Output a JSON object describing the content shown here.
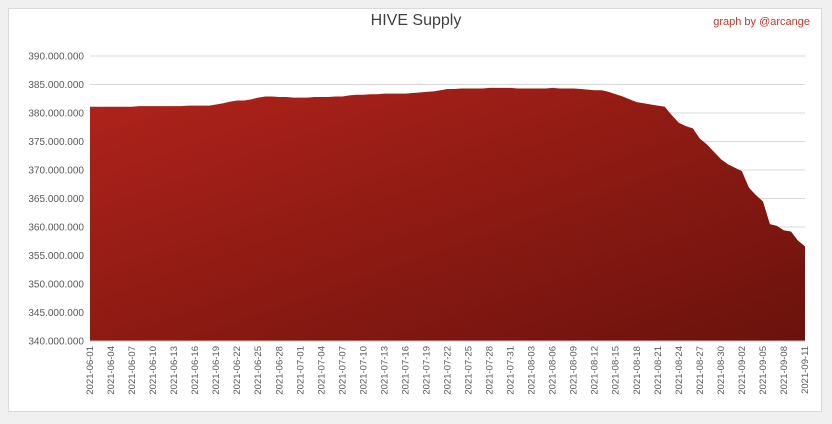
{
  "chart_data": {
    "type": "area",
    "title": "HIVE Supply",
    "credit": "graph by @arcange",
    "xlabel": "",
    "ylabel": "",
    "ylim": [
      340000000,
      390000000
    ],
    "yticks": [
      340000000,
      345000000,
      350000000,
      355000000,
      360000000,
      365000000,
      370000000,
      375000000,
      380000000,
      385000000,
      390000000
    ],
    "ytick_labels": [
      "340.000.000",
      "345.000.000",
      "350.000.000",
      "355.000.000",
      "360.000.000",
      "365.000.000",
      "370.000.000",
      "375.000.000",
      "380.000.000",
      "385.000.000",
      "390.000.000"
    ],
    "xtick_labels": [
      "2021-06-01",
      "2021-06-04",
      "2021-06-07",
      "2021-06-10",
      "2021-06-13",
      "2021-06-16",
      "2021-06-19",
      "2021-06-22",
      "2021-06-25",
      "2021-06-28",
      "2021-07-01",
      "2021-07-04",
      "2021-07-07",
      "2021-07-10",
      "2021-07-13",
      "2021-07-16",
      "2021-07-19",
      "2021-07-22",
      "2021-07-25",
      "2021-07-28",
      "2021-07-31",
      "2021-08-03",
      "2021-08-06",
      "2021-08-09",
      "2021-08-12",
      "2021-08-15",
      "2021-08-18",
      "2021-08-21",
      "2021-08-24",
      "2021-08-27",
      "2021-08-30",
      "2021-09-02",
      "2021-09-05",
      "2021-09-08",
      "2021-09-11"
    ],
    "x": [
      "2021-06-01",
      "2021-06-02",
      "2021-06-03",
      "2021-06-04",
      "2021-06-05",
      "2021-06-06",
      "2021-06-07",
      "2021-06-08",
      "2021-06-09",
      "2021-06-10",
      "2021-06-11",
      "2021-06-12",
      "2021-06-13",
      "2021-06-14",
      "2021-06-15",
      "2021-06-16",
      "2021-06-17",
      "2021-06-18",
      "2021-06-19",
      "2021-06-20",
      "2021-06-21",
      "2021-06-22",
      "2021-06-23",
      "2021-06-24",
      "2021-06-25",
      "2021-06-26",
      "2021-06-27",
      "2021-06-28",
      "2021-06-29",
      "2021-06-30",
      "2021-07-01",
      "2021-07-02",
      "2021-07-03",
      "2021-07-04",
      "2021-07-05",
      "2021-07-06",
      "2021-07-07",
      "2021-07-08",
      "2021-07-09",
      "2021-07-10",
      "2021-07-11",
      "2021-07-12",
      "2021-07-13",
      "2021-07-14",
      "2021-07-15",
      "2021-07-16",
      "2021-07-17",
      "2021-07-18",
      "2021-07-19",
      "2021-07-20",
      "2021-07-21",
      "2021-07-22",
      "2021-07-23",
      "2021-07-24",
      "2021-07-25",
      "2021-07-26",
      "2021-07-27",
      "2021-07-28",
      "2021-07-29",
      "2021-07-30",
      "2021-07-31",
      "2021-08-01",
      "2021-08-02",
      "2021-08-03",
      "2021-08-04",
      "2021-08-05",
      "2021-08-06",
      "2021-08-07",
      "2021-08-08",
      "2021-08-09",
      "2021-08-10",
      "2021-08-11",
      "2021-08-12",
      "2021-08-13",
      "2021-08-14",
      "2021-08-15",
      "2021-08-16",
      "2021-08-17",
      "2021-08-18",
      "2021-08-19",
      "2021-08-20",
      "2021-08-21",
      "2021-08-22",
      "2021-08-23",
      "2021-08-24",
      "2021-08-25",
      "2021-08-26",
      "2021-08-27",
      "2021-08-28",
      "2021-08-29",
      "2021-08-30",
      "2021-08-31",
      "2021-09-01",
      "2021-09-02",
      "2021-09-03",
      "2021-09-04",
      "2021-09-05",
      "2021-09-06",
      "2021-09-07",
      "2021-09-08",
      "2021-09-09",
      "2021-09-10",
      "2021-09-11"
    ],
    "series": [
      {
        "values": [
          381100000,
          381100000,
          381100000,
          381100000,
          381100000,
          381100000,
          381100000,
          381200000,
          381200000,
          381200000,
          381200000,
          381200000,
          381200000,
          381200000,
          381300000,
          381300000,
          381300000,
          381300000,
          381500000,
          381700000,
          382000000,
          382200000,
          382200000,
          382400000,
          382700000,
          382900000,
          382900000,
          382800000,
          382800000,
          382700000,
          382700000,
          382700000,
          382800000,
          382800000,
          382800000,
          382900000,
          382900000,
          383100000,
          383200000,
          383200000,
          383300000,
          383300000,
          383400000,
          383400000,
          383400000,
          383400000,
          383500000,
          383600000,
          383700000,
          383800000,
          384000000,
          384200000,
          384200000,
          384300000,
          384300000,
          384300000,
          384300000,
          384400000,
          384400000,
          384400000,
          384400000,
          384300000,
          384300000,
          384300000,
          384300000,
          384300000,
          384400000,
          384300000,
          384300000,
          384300000,
          384200000,
          384100000,
          384000000,
          384000000,
          383700000,
          383300000,
          382900000,
          382400000,
          381900000,
          381700000,
          381500000,
          381300000,
          381100000,
          379600000,
          378300000,
          377700000,
          377300000,
          375500000,
          374500000,
          373200000,
          371900000,
          371000000,
          370400000,
          369800000,
          366900000,
          365600000,
          364500000,
          360500000,
          360200000,
          359400000,
          359200000,
          357600000,
          356600000
        ]
      }
    ],
    "fill_color_top": "#b0231b",
    "fill_color_bottom": "#6b120c",
    "grid": true,
    "legend": "none"
  }
}
